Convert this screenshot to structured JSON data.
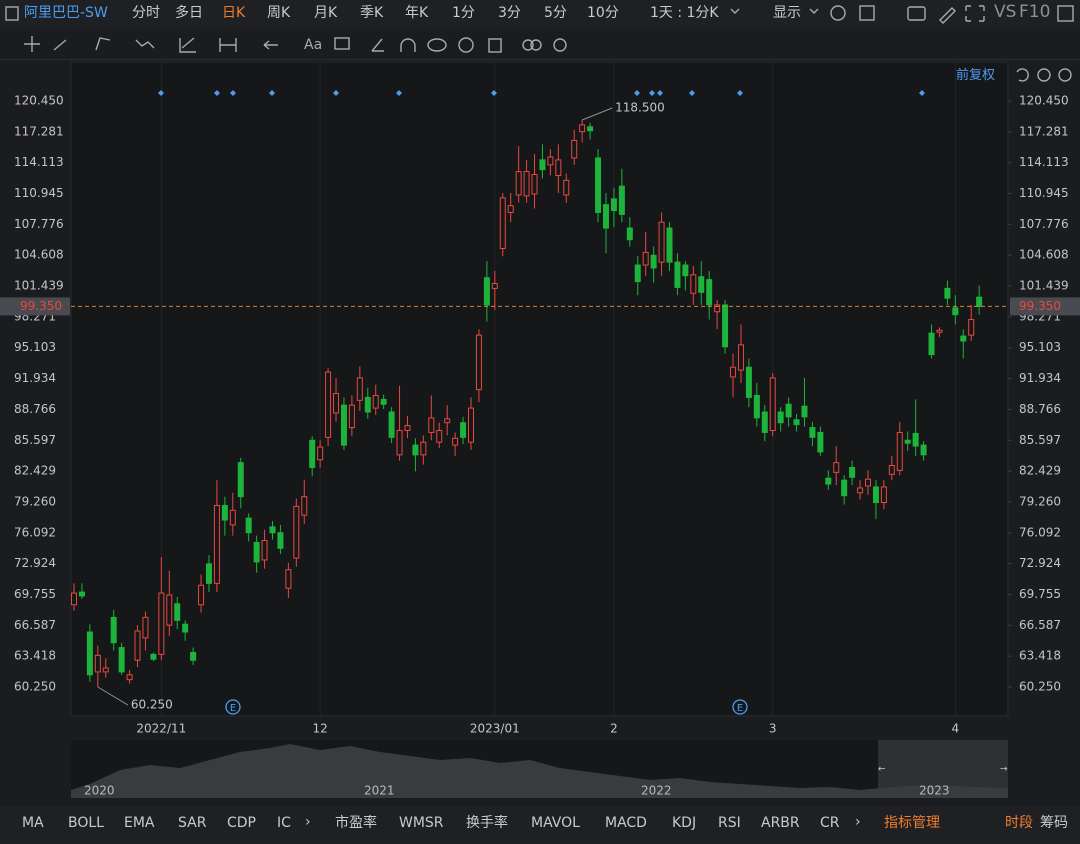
{
  "header": {
    "symbol": "阿里巴巴-SW",
    "periods": [
      "分时",
      "多日",
      "日K",
      "周K",
      "月K",
      "季K",
      "年K",
      "1分",
      "3分",
      "5分",
      "10分"
    ],
    "interval": "1天 : 1分K",
    "display": "显示",
    "vs": "VS",
    "f10": "F10"
  },
  "toolbar": {
    "text_tool": "Aa"
  },
  "adjust": "前复权",
  "overview": {
    "years": [
      "2020",
      "2021",
      "2022",
      "2023"
    ]
  },
  "indicators": [
    "MA",
    "BOLL",
    "EMA",
    "SAR",
    "CDP",
    "IC",
    "市盈率",
    "WMSR",
    "换手率",
    "MAVOL",
    "MACD",
    "KDJ",
    "RSI",
    "ARBR",
    "CR"
  ],
  "indicator_manage": "指标管理",
  "session": "时段",
  "chips": "筹码",
  "chart_data": {
    "type": "candlestick",
    "up_color": "#e8483f",
    "down_color": "#1db43c",
    "ylim": [
      57.27,
      124.15
    ],
    "yticks": [
      {
        "value": 120.45,
        "label": "120.450"
      },
      117.281,
      114.113,
      110.945,
      107.776,
      104.608,
      101.439,
      98.271,
      95.103,
      91.934,
      88.766,
      85.597,
      82.429,
      {
        "value": 79.26,
        "label": "79.260"
      },
      76.092,
      72.924,
      69.755,
      66.587,
      63.418,
      {
        "value": 60.25,
        "label": "60.250"
      }
    ],
    "last_price": {
      "value": 99.35,
      "label": "99.350"
    },
    "annotations": [
      {
        "value": 118.5,
        "label": "118.500"
      },
      {
        "value": 60.25,
        "label": "60.250"
      }
    ],
    "categories": [
      null,
      null,
      null,
      null,
      null,
      null,
      null,
      null,
      null,
      null,
      null,
      "2022/11",
      null,
      null,
      null,
      null,
      null,
      null,
      null,
      null,
      null,
      null,
      null,
      null,
      null,
      null,
      null,
      null,
      null,
      null,
      null,
      "12",
      null,
      null,
      null,
      null,
      null,
      null,
      null,
      null,
      null,
      null,
      null,
      null,
      null,
      null,
      null,
      null,
      null,
      null,
      null,
      null,
      null,
      "2023/01",
      null,
      null,
      null,
      null,
      null,
      null,
      null,
      null,
      null,
      null,
      null,
      null,
      null,
      null,
      "2",
      null,
      null,
      null,
      null,
      null,
      null,
      null,
      null,
      null,
      null,
      null,
      null,
      null,
      null,
      null,
      null,
      null,
      null,
      null,
      "3",
      null,
      null,
      null,
      null,
      null,
      null,
      null,
      null,
      null,
      null,
      null,
      null,
      null,
      null,
      null,
      null,
      null,
      null,
      null,
      null,
      null,
      null,
      "4",
      null,
      null,
      null
    ],
    "ohlc": [
      [
        68.7,
        70.9,
        68.1,
        69.9
      ],
      [
        70.0,
        70.9,
        69.3,
        69.6
      ],
      [
        65.9,
        66.7,
        60.8,
        61.5
      ],
      [
        61.8,
        64.5,
        60.25,
        63.5
      ],
      [
        61.8,
        63.2,
        61.2,
        62.2
      ],
      [
        67.4,
        68.2,
        64.0,
        64.8
      ],
      [
        64.3,
        64.8,
        61.5,
        61.8
      ],
      [
        61.0,
        62.0,
        60.6,
        61.5
      ],
      [
        63.0,
        66.6,
        62.3,
        66.0
      ],
      [
        65.3,
        68.0,
        64.0,
        67.4
      ],
      [
        63.6,
        63.8,
        62.9,
        63.1
      ],
      [
        63.6,
        73.6,
        63.0,
        69.9
      ],
      [
        66.6,
        72.2,
        65.5,
        69.7
      ],
      [
        68.8,
        69.5,
        66.2,
        67.1
      ],
      [
        66.7,
        67.1,
        65.0,
        65.9
      ],
      [
        63.8,
        64.3,
        62.5,
        63.0
      ],
      [
        68.7,
        71.8,
        67.9,
        70.7
      ],
      [
        72.9,
        73.8,
        70.0,
        70.9
      ],
      [
        70.9,
        81.5,
        70.0,
        78.9
      ],
      [
        78.9,
        79.8,
        75.8,
        77.4
      ],
      [
        76.9,
        80.2,
        75.8,
        78.4
      ],
      [
        83.3,
        83.8,
        78.6,
        79.8
      ],
      [
        77.6,
        78.1,
        75.2,
        76.1
      ],
      [
        75.1,
        75.8,
        72.0,
        73.1
      ],
      [
        73.3,
        76.4,
        72.4,
        75.3
      ],
      [
        76.7,
        77.3,
        75.4,
        76.1
      ],
      [
        76.1,
        76.9,
        73.9,
        74.5
      ],
      [
        70.4,
        73.0,
        69.4,
        72.3
      ],
      [
        73.5,
        79.6,
        72.6,
        78.8
      ],
      [
        77.9,
        81.5,
        77.0,
        79.8
      ],
      [
        85.6,
        86.0,
        81.9,
        82.8
      ],
      [
        83.6,
        85.6,
        82.8,
        84.9
      ],
      [
        85.9,
        93.0,
        85.0,
        92.6
      ],
      [
        88.4,
        92.0,
        87.5,
        90.4
      ],
      [
        89.2,
        90.0,
        84.6,
        85.1
      ],
      [
        86.9,
        90.2,
        86.0,
        89.2
      ],
      [
        89.7,
        93.2,
        88.6,
        92.0
      ],
      [
        90.0,
        91.0,
        87.8,
        88.5
      ],
      [
        88.9,
        91.3,
        88.2,
        90.2
      ],
      [
        89.8,
        90.3,
        88.8,
        89.3
      ],
      [
        88.5,
        89.0,
        85.3,
        85.9
      ],
      [
        84.1,
        91.2,
        83.5,
        86.6
      ],
      [
        86.6,
        88.1,
        85.8,
        87.1
      ],
      [
        85.1,
        85.8,
        82.4,
        84.1
      ],
      [
        84.1,
        86.1,
        83.1,
        85.4
      ],
      [
        86.4,
        90.2,
        85.6,
        87.9
      ],
      [
        85.4,
        87.4,
        84.8,
        86.6
      ],
      [
        87.4,
        89.2,
        86.1,
        87.8
      ],
      [
        85.1,
        86.4,
        84.0,
        85.8
      ],
      [
        87.4,
        88.0,
        85.2,
        85.9
      ],
      [
        85.4,
        90.0,
        84.6,
        88.9
      ],
      [
        90.8,
        97.0,
        89.5,
        96.4
      ],
      [
        102.3,
        104.0,
        97.8,
        99.5
      ],
      [
        101.2,
        103.0,
        99.0,
        101.7
      ],
      [
        105.3,
        111.0,
        104.5,
        110.5
      ],
      [
        109.0,
        111.0,
        108.0,
        109.7
      ],
      [
        110.8,
        115.8,
        110.0,
        113.2
      ],
      [
        110.7,
        114.4,
        110.0,
        113.2
      ],
      [
        110.9,
        115.0,
        109.4,
        112.9
      ],
      [
        114.4,
        116.0,
        112.5,
        113.4
      ],
      [
        113.9,
        115.5,
        112.8,
        114.7
      ],
      [
        112.8,
        116.0,
        111.0,
        114.4
      ],
      [
        110.8,
        113.0,
        110.0,
        112.3
      ],
      [
        114.6,
        117.5,
        113.9,
        116.4
      ],
      [
        117.3,
        118.5,
        116.2,
        118.0
      ],
      [
        117.8,
        118.2,
        116.5,
        117.4
      ],
      [
        114.6,
        115.5,
        108.0,
        109.0
      ],
      [
        109.8,
        111.0,
        104.8,
        107.4
      ],
      [
        110.4,
        111.5,
        107.5,
        109.2
      ],
      [
        111.7,
        113.5,
        108.0,
        108.8
      ],
      [
        107.4,
        108.5,
        105.5,
        106.2
      ],
      [
        103.6,
        104.5,
        100.5,
        101.9
      ],
      [
        103.6,
        107.0,
        102.5,
        104.9
      ],
      [
        104.6,
        105.5,
        101.8,
        103.3
      ],
      [
        103.9,
        109.0,
        102.5,
        108.0
      ],
      [
        107.4,
        108.0,
        103.0,
        103.9
      ],
      [
        103.9,
        104.8,
        100.5,
        101.3
      ],
      [
        103.6,
        104.0,
        101.0,
        102.5
      ],
      [
        100.7,
        103.5,
        99.5,
        102.6
      ],
      [
        102.4,
        104.0,
        99.5,
        100.8
      ],
      [
        102.1,
        103.0,
        98.0,
        99.5
      ],
      [
        98.8,
        100.0,
        97.0,
        99.5
      ],
      [
        99.5,
        100.0,
        94.5,
        95.2
      ],
      [
        92.1,
        94.5,
        90.0,
        93.1
      ],
      [
        92.8,
        97.5,
        91.5,
        95.4
      ],
      [
        93.1,
        94.0,
        89.0,
        90.0
      ],
      [
        90.2,
        91.5,
        87.0,
        87.9
      ],
      [
        88.5,
        89.2,
        85.5,
        86.4
      ],
      [
        86.6,
        92.5,
        86.0,
        92.0
      ],
      [
        88.5,
        89.0,
        86.5,
        87.4
      ],
      [
        89.3,
        90.0,
        87.0,
        88.0
      ],
      [
        87.7,
        88.3,
        86.5,
        87.2
      ],
      [
        89.1,
        92.0,
        87.0,
        88.0
      ],
      [
        86.9,
        87.5,
        85.0,
        85.9
      ],
      [
        86.4,
        87.0,
        84.0,
        84.4
      ],
      [
        81.7,
        82.5,
        80.5,
        81.1
      ],
      [
        82.3,
        85.0,
        81.0,
        83.3
      ],
      [
        81.5,
        82.0,
        79.0,
        79.9
      ],
      [
        82.8,
        83.5,
        81.0,
        81.8
      ],
      [
        80.2,
        81.5,
        79.5,
        80.7
      ],
      [
        80.9,
        82.5,
        80.0,
        81.6
      ],
      [
        80.8,
        81.5,
        77.5,
        79.2
      ],
      [
        79.2,
        81.5,
        78.5,
        80.8
      ],
      [
        82.1,
        84.0,
        81.5,
        83.0
      ],
      [
        82.5,
        87.5,
        82.0,
        86.4
      ],
      [
        85.6,
        86.5,
        84.5,
        85.3
      ],
      [
        86.3,
        89.8,
        84.0,
        85.0
      ],
      [
        85.1,
        85.5,
        83.5,
        84.1
      ],
      [
        96.6,
        97.5,
        94.0,
        94.4
      ],
      [
        96.7,
        97.2,
        96.2,
        96.9
      ],
      [
        101.2,
        102.0,
        99.5,
        100.2
      ],
      [
        99.2,
        100.5,
        97.5,
        98.5
      ],
      [
        96.3,
        97.0,
        94.0,
        95.8
      ],
      [
        96.4,
        99.5,
        95.8,
        98.0
      ],
      [
        100.3,
        101.5,
        98.5,
        99.35
      ]
    ]
  }
}
